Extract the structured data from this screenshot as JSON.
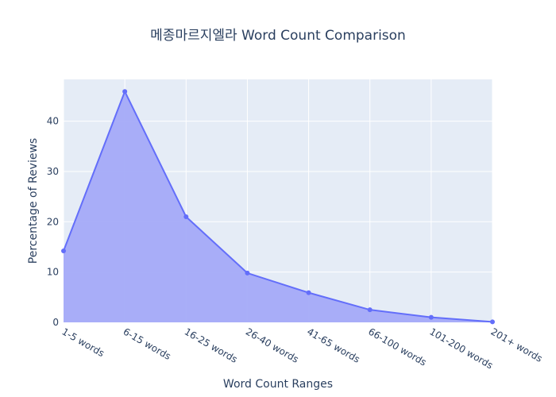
{
  "chart_data": {
    "type": "area",
    "title": "메종마르지엘라 Word Count Comparison",
    "xlabel": "Word Count Ranges",
    "ylabel": "Percentage of Reviews",
    "categories": [
      "1-5 words",
      "6-15 words",
      "16-25 words",
      "26-40 words",
      "41-65 words",
      "66-100 words",
      "101-200 words",
      "201+ words"
    ],
    "values": [
      14.2,
      45.9,
      21.0,
      9.8,
      5.9,
      2.5,
      1.0,
      0.1
    ],
    "yticks": [
      "0",
      "10",
      "20",
      "30",
      "40"
    ],
    "ylim": [
      0,
      48.3
    ],
    "grid": true,
    "colors": {
      "line": "#636efa",
      "fill": "#a4aaf8",
      "plot_bg": "#e5ecf6",
      "grid": "#ffffff",
      "text": "#2a3f5f"
    }
  }
}
